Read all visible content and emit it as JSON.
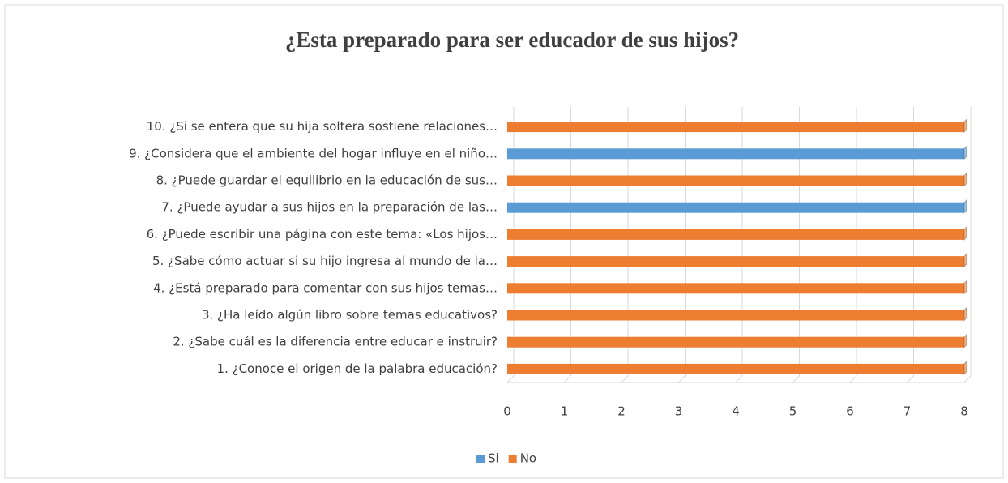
{
  "chart_data": {
    "type": "bar",
    "orientation": "horizontal",
    "stacked": true,
    "title": "¿Esta preparado para ser educador de sus hijos?",
    "categories": [
      "1. ¿Conoce el origen de la palabra educación?",
      "2. ¿Sabe cuál es la diferencia entre educar e instruir?",
      "3. ¿Ha leído algún libro sobre temas educativos?",
      "4. ¿Está preparado para comentar con sus hijos temas…",
      "5. ¿Sabe cómo actuar si su hijo ingresa al mundo de la…",
      "6. ¿Puede escribir una página con este tema: «Los hijos…",
      "7. ¿Puede ayudar a sus hijos en la preparación de las…",
      "8. ¿Puede guardar el equilibrio en la educación de sus…",
      "9. ¿Considera que el ambiente del hogar influye en el niño…",
      "10. ¿Si se entera que su hija soltera sostiene relaciones…"
    ],
    "series": [
      {
        "name": "Si",
        "color": "#5b9bd5",
        "values": [
          0,
          0,
          0,
          0,
          0,
          0,
          8,
          0,
          8,
          0
        ]
      },
      {
        "name": "No",
        "color": "#ed7d31",
        "values": [
          8,
          8,
          8,
          8,
          8,
          8,
          0,
          8,
          0,
          8
        ]
      }
    ],
    "xlim": [
      0,
      8
    ],
    "xticks": [
      0,
      1,
      2,
      3,
      4,
      5,
      6,
      7,
      8
    ],
    "grid": true,
    "legend": "bottom"
  }
}
